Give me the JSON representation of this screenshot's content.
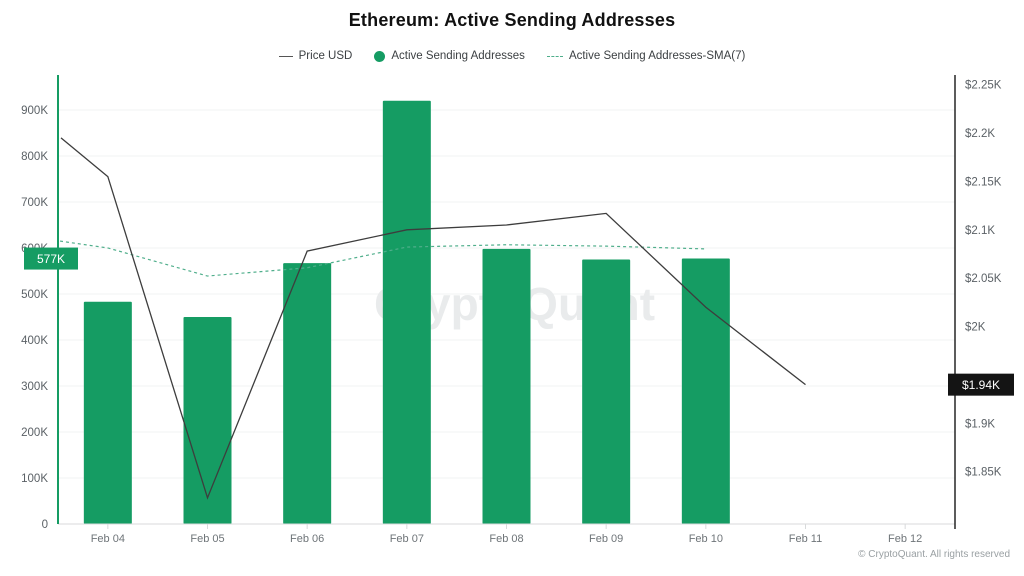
{
  "title": "Ethereum: Active Sending Addresses",
  "legend": [
    {
      "label": "Price USD",
      "marker": "line",
      "color": "#555555"
    },
    {
      "label": "Active Sending Addresses",
      "marker": "circle",
      "color": "#159c63"
    },
    {
      "label": "Active Sending Addresses-SMA(7)",
      "marker": "dashed-line",
      "color": "#4fae8b"
    }
  ],
  "watermark": "CryptoQuant",
  "attribution": "© CryptoQuant. All rights reserved",
  "badges": {
    "left_value_badge": {
      "text": "577K",
      "value": 577000,
      "bg": "#159c63",
      "fg": "#ffffff"
    },
    "right_price_badge": {
      "text": "$1.94K",
      "value": 1940,
      "bg": "#141414",
      "fg": "#ffffff"
    }
  },
  "colors": {
    "bar": "#159c63",
    "price_line": "#3d3d3d",
    "sma_line": "#4fae8b",
    "left_axis_line": "#159c63",
    "right_axis_line": "#262626",
    "grid": "#f2f3f3",
    "baseline": "#d8dadb",
    "axis_text": "#5b6166",
    "x_text": "#6e7478",
    "watermark": "#e9ebec"
  },
  "chart_data": {
    "type": "bar",
    "categories": [
      "Feb 04",
      "Feb 05",
      "Feb 06",
      "Feb 07",
      "Feb 08",
      "Feb 09",
      "Feb 10",
      "Feb 11",
      "Feb 12"
    ],
    "series": [
      {
        "name": "Active Sending Addresses",
        "type": "bar",
        "axis": "left",
        "values": [
          483000,
          450000,
          567000,
          920000,
          598000,
          575000,
          577000,
          null,
          null
        ]
      },
      {
        "name": "Price USD",
        "type": "line",
        "axis": "right",
        "edge_start": 2195,
        "values": [
          2155,
          1823,
          2078,
          2100,
          2105,
          2117,
          2020,
          1940,
          null
        ]
      },
      {
        "name": "Active Sending Addresses-SMA(7)",
        "type": "line-dashed",
        "axis": "left",
        "edge_start": 615000,
        "values": [
          600000,
          539000,
          557000,
          602000,
          607000,
          604000,
          598000,
          null,
          null
        ]
      }
    ],
    "left_axis": {
      "min": 0,
      "max": 976000,
      "ticks": [
        {
          "label": "0",
          "value": 0
        },
        {
          "label": "100K",
          "value": 100000
        },
        {
          "label": "200K",
          "value": 200000
        },
        {
          "label": "300K",
          "value": 300000
        },
        {
          "label": "400K",
          "value": 400000
        },
        {
          "label": "500K",
          "value": 500000
        },
        {
          "label": "600K",
          "value": 600000
        },
        {
          "label": "700K",
          "value": 700000
        },
        {
          "label": "800K",
          "value": 800000
        },
        {
          "label": "900K",
          "value": 900000
        }
      ]
    },
    "right_axis": {
      "min": 1796,
      "max": 2260,
      "ticks": [
        {
          "label": "$2.25K",
          "value": 2250
        },
        {
          "label": "$2.2K",
          "value": 2200
        },
        {
          "label": "$2.15K",
          "value": 2150
        },
        {
          "label": "$2.1K",
          "value": 2100
        },
        {
          "label": "$2.05K",
          "value": 2050
        },
        {
          "label": "$2K",
          "value": 2000
        },
        {
          "label": "$1.9K",
          "value": 1900
        },
        {
          "label": "$1.85K",
          "value": 1850
        }
      ]
    },
    "grid": true,
    "legend_position": "top",
    "xlabel": "",
    "ylabel_left": "Active Sending Addresses",
    "ylabel_right": "Price USD"
  }
}
